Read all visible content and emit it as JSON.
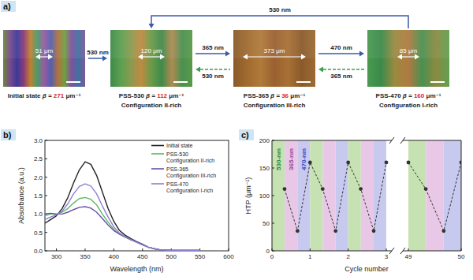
{
  "panel_labels": [
    "a)",
    "b)",
    "c)"
  ],
  "diagram": {
    "beta_symbol": "β =",
    "beta_unit": "μm⁻¹",
    "states": [
      {
        "name": "Initial state",
        "beta": 271,
        "width_label": "51 μm"
      },
      {
        "name": "PSS-530",
        "beta": 112,
        "configuration": "Configuration II-rich",
        "width_label": "120 μm"
      },
      {
        "name": "PSS-365",
        "beta": 36,
        "configuration": "Configuration III-rich",
        "width_label": "373 μm"
      },
      {
        "name": "PSS-470",
        "beta": 160,
        "configuration": "Configuration I-rich",
        "width_label": "85 μm"
      }
    ],
    "arrows": [
      {
        "label": "530 nm",
        "from": 0,
        "to": 1,
        "line_style": "solid"
      },
      {
        "label": "365 nm",
        "from": 1,
        "to": 2,
        "line_style": "solid"
      },
      {
        "label": "530 nm",
        "from": 2,
        "to": 1,
        "line_style": "dashed"
      },
      {
        "label": "470 nm",
        "from": 2,
        "to": 3,
        "line_style": "solid"
      },
      {
        "label": "365 nm",
        "from": 3,
        "to": 2,
        "line_style": "dashed"
      },
      {
        "label": "530 nm",
        "from": 3,
        "to": 1,
        "line_style": "solid"
      }
    ]
  },
  "chart_data": [
    {
      "type": "line",
      "xlabel": "Wavelength (nm)",
      "ylabel": "Absorbance (a.u.)",
      "x": [
        280,
        290,
        300,
        310,
        320,
        330,
        340,
        350,
        360,
        370,
        380,
        390,
        400,
        410,
        420,
        430,
        440,
        450,
        460,
        470,
        480,
        490,
        500,
        510,
        520,
        530,
        540,
        550
      ],
      "xlim": [
        280,
        600
      ],
      "xticks": [
        300,
        350,
        400,
        450,
        500,
        550,
        600
      ],
      "ylim": [
        0,
        3
      ],
      "yticks": [
        {
          "value": 0,
          "label": "0.0"
        },
        {
          "value": 0.5,
          "label": "0.5"
        },
        {
          "value": 1,
          "label": "1.0"
        },
        {
          "value": 1.5,
          "label": "1.5"
        },
        {
          "value": 2,
          "label": "2.0"
        },
        {
          "value": 2.5,
          "label": "2.5"
        },
        {
          "value": 3,
          "label": "3.0"
        }
      ],
      "legend": "top-right",
      "series": [
        {
          "name": "Initial state",
          "color": "#222222",
          "values": [
            0.75,
            0.85,
            0.95,
            1.15,
            1.45,
            1.85,
            2.2,
            2.42,
            2.35,
            2.05,
            1.6,
            1.15,
            0.8,
            0.55,
            0.42,
            0.33,
            0.25,
            0.18,
            0.1,
            0.06,
            0.03,
            0.02,
            0.01,
            0.01,
            0.01,
            0.01,
            0.01,
            0.01
          ]
        },
        {
          "name": "PSS-530\nConfiguration II-rich",
          "color": "#5cb85c",
          "values": [
            0.95,
            1.0,
            1.0,
            1.05,
            1.15,
            1.3,
            1.42,
            1.45,
            1.4,
            1.25,
            1.0,
            0.78,
            0.58,
            0.45,
            0.37,
            0.3,
            0.24,
            0.17,
            0.1,
            0.06,
            0.03,
            0.02,
            0.01,
            0.01,
            0.01,
            0.01,
            0.01,
            0.01
          ]
        },
        {
          "name": "PSS-365\nConfiguration III-rich",
          "color": "#6a4fa8",
          "values": [
            1.0,
            1.02,
            1.0,
            1.0,
            1.05,
            1.12,
            1.18,
            1.2,
            1.16,
            1.05,
            0.88,
            0.7,
            0.55,
            0.45,
            0.37,
            0.3,
            0.24,
            0.17,
            0.1,
            0.06,
            0.03,
            0.02,
            0.01,
            0.01,
            0.01,
            0.01,
            0.01,
            0.01
          ]
        },
        {
          "name": "PSS-470\nConfiguration I-rich",
          "color": "#8c7fd0",
          "values": [
            0.85,
            0.92,
            0.98,
            1.08,
            1.28,
            1.55,
            1.75,
            1.82,
            1.76,
            1.55,
            1.22,
            0.92,
            0.65,
            0.48,
            0.38,
            0.3,
            0.23,
            0.16,
            0.1,
            0.06,
            0.03,
            0.02,
            0.01,
            0.01,
            0.01,
            0.01,
            0.01,
            0.01
          ]
        }
      ]
    },
    {
      "type": "line",
      "xlabel": "Cycle number",
      "ylabel": "HTP (μm⁻¹)",
      "x": [
        0.33,
        0.67,
        1,
        1.33,
        1.67,
        2,
        2.33,
        2.67,
        3,
        49,
        49.33,
        49.67,
        50
      ],
      "values": [
        112,
        36,
        160,
        112,
        36,
        160,
        112,
        36,
        160,
        160,
        112,
        36,
        160
      ],
      "xlim": [
        0,
        50
      ],
      "x_break": [
        3,
        49
      ],
      "xticks": [
        0,
        1,
        2,
        3,
        49,
        50
      ],
      "ylim": [
        0,
        200
      ],
      "yticks": [
        0,
        50,
        100,
        150,
        200
      ],
      "color": "#333333",
      "marker": "circle",
      "line_style": "dashed",
      "bands": [
        {
          "label": "530-nm",
          "color": "#c6e2b3"
        },
        {
          "label": "365-nm",
          "color": "#e8c8e6"
        },
        {
          "label": "470-nm",
          "color": "#c8c9ef"
        }
      ]
    }
  ]
}
